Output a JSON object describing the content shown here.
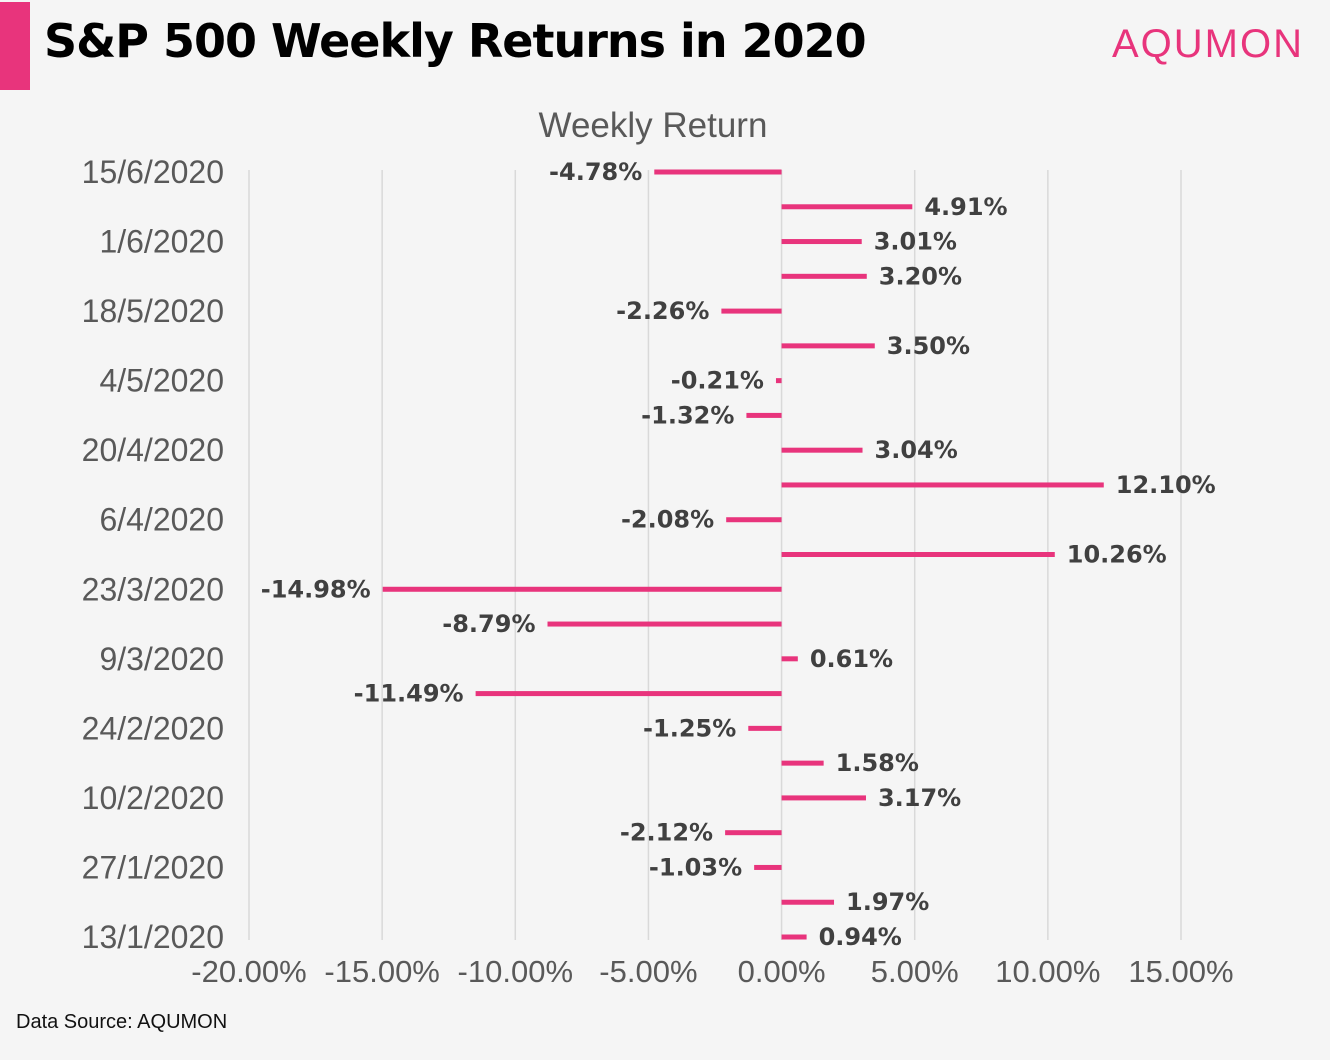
{
  "header": {
    "title": "S&P 500 Weekly Returns in 2020",
    "brand": "AQUMON",
    "source": "Data Source: AQUMON"
  },
  "colors": {
    "accent": "#e8347c",
    "bar": "#e8347c",
    "grid": "#d9d9d9",
    "text": "#595959",
    "label": "#404040"
  },
  "chart_data": {
    "type": "bar",
    "orientation": "horizontal",
    "title": "Weekly Return",
    "xlim": [
      -0.2,
      0.15
    ],
    "x_ticks": [
      -0.2,
      -0.15,
      -0.1,
      -0.05,
      0,
      0.05,
      0.1,
      0.15
    ],
    "x_tick_labels": [
      "-20.00%",
      "-15.00%",
      "-10.00%",
      "-5.00%",
      "0.00%",
      "5.00%",
      "10.00%",
      "15.00%"
    ],
    "grid": true,
    "y_tick_labels": [
      "13/1/2020",
      "27/1/2020",
      "10/2/2020",
      "24/2/2020",
      "9/3/2020",
      "23/3/2020",
      "6/4/2020",
      "20/4/2020",
      "4/5/2020",
      "18/5/2020",
      "1/6/2020",
      "15/6/2020"
    ],
    "y_tick_every": 2,
    "values": [
      0.0094,
      0.0197,
      -0.0103,
      -0.0212,
      0.0317,
      0.0158,
      -0.0125,
      -0.1149,
      0.0061,
      -0.0879,
      -0.1498,
      0.1026,
      -0.0208,
      0.121,
      0.0304,
      -0.0132,
      -0.0021,
      0.035,
      -0.0226,
      0.032,
      0.0301,
      0.0491,
      -0.0478
    ],
    "data_labels": [
      "0.94%",
      "1.97%",
      "-1.03%",
      "-2.12%",
      "3.17%",
      "1.58%",
      "-1.25%",
      "-11.49%",
      "0.61%",
      "-8.79%",
      "-14.98%",
      "10.26%",
      "-2.08%",
      "12.10%",
      "3.04%",
      "-1.32%",
      "-0.21%",
      "3.50%",
      "-2.26%",
      "3.20%",
      "3.01%",
      "4.91%",
      "-4.78%"
    ]
  }
}
